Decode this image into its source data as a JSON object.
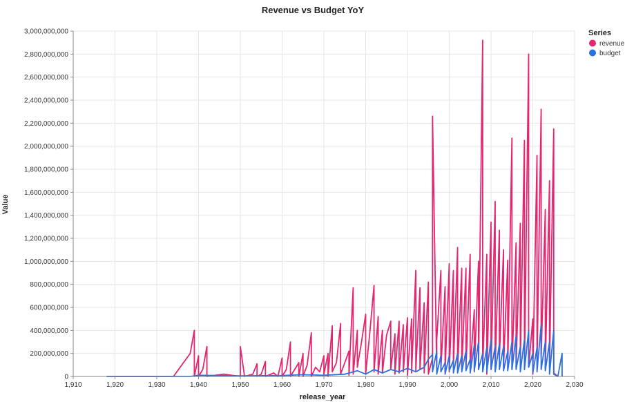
{
  "chart_data": {
    "type": "line",
    "title": "Revenue vs Budget YoY",
    "xlabel": "release_year",
    "ylabel": "Value",
    "xlim": [
      1910,
      2030
    ],
    "ylim": [
      0,
      3000000000
    ],
    "x_ticks": [
      "1,910",
      "1,920",
      "1,930",
      "1,940",
      "1,950",
      "1,960",
      "1,970",
      "1,980",
      "1,990",
      "2,000",
      "2,010",
      "2,020",
      "2,030"
    ],
    "y_ticks": [
      "0",
      "200,000,000",
      "400,000,000",
      "600,000,000",
      "800,000,000",
      "1,000,000,000",
      "1,200,000,000",
      "1,400,000,000",
      "1,600,000,000",
      "1,800,000,000",
      "2,000,000,000",
      "2,200,000,000",
      "2,400,000,000",
      "2,600,000,000",
      "2,800,000,000",
      "3,000,000,000"
    ],
    "grid": true,
    "legend": {
      "title": "Series",
      "position": "top-right"
    },
    "series": [
      {
        "name": "revenue",
        "color": "#e3266f",
        "points": [
          [
            1918,
            0
          ],
          [
            1934,
            0
          ],
          [
            1938,
            200000000
          ],
          [
            1939,
            400000000
          ],
          [
            1939,
            0
          ],
          [
            1940,
            180000000
          ],
          [
            1940,
            0
          ],
          [
            1941,
            60000000
          ],
          [
            1942,
            260000000
          ],
          [
            1942,
            0
          ],
          [
            1946,
            20000000
          ],
          [
            1950,
            0
          ],
          [
            1950,
            260000000
          ],
          [
            1951,
            0
          ],
          [
            1953,
            20000000
          ],
          [
            1954,
            110000000
          ],
          [
            1954,
            0
          ],
          [
            1955,
            20000000
          ],
          [
            1956,
            130000000
          ],
          [
            1956,
            0
          ],
          [
            1958,
            30000000
          ],
          [
            1959,
            0
          ],
          [
            1960,
            160000000
          ],
          [
            1960,
            0
          ],
          [
            1961,
            60000000
          ],
          [
            1962,
            300000000
          ],
          [
            1962,
            0
          ],
          [
            1963,
            60000000
          ],
          [
            1964,
            120000000
          ],
          [
            1964,
            0
          ],
          [
            1965,
            200000000
          ],
          [
            1965,
            0
          ],
          [
            1966,
            100000000
          ],
          [
            1967,
            380000000
          ],
          [
            1967,
            0
          ],
          [
            1968,
            80000000
          ],
          [
            1969,
            40000000
          ],
          [
            1970,
            180000000
          ],
          [
            1970,
            20000000
          ],
          [
            1971,
            200000000
          ],
          [
            1971,
            0
          ],
          [
            1972,
            440000000
          ],
          [
            1972,
            40000000
          ],
          [
            1973,
            120000000
          ],
          [
            1974,
            460000000
          ],
          [
            1974,
            20000000
          ],
          [
            1975,
            120000000
          ],
          [
            1976,
            220000000
          ],
          [
            1976,
            10000000
          ],
          [
            1977,
            770000000
          ],
          [
            1977,
            20000000
          ],
          [
            1978,
            400000000
          ],
          [
            1978,
            80000000
          ],
          [
            1979,
            300000000
          ],
          [
            1980,
            540000000
          ],
          [
            1980,
            20000000
          ],
          [
            1981,
            380000000
          ],
          [
            1982,
            790000000
          ],
          [
            1982,
            40000000
          ],
          [
            1983,
            520000000
          ],
          [
            1983,
            20000000
          ],
          [
            1984,
            400000000
          ],
          [
            1984,
            30000000
          ],
          [
            1985,
            360000000
          ],
          [
            1986,
            480000000
          ],
          [
            1986,
            60000000
          ],
          [
            1987,
            370000000
          ],
          [
            1987,
            20000000
          ],
          [
            1988,
            480000000
          ],
          [
            1988,
            30000000
          ],
          [
            1989,
            450000000
          ],
          [
            1989,
            40000000
          ],
          [
            1990,
            510000000
          ],
          [
            1990,
            10000000
          ],
          [
            1991,
            500000000
          ],
          [
            1991,
            30000000
          ],
          [
            1992,
            920000000
          ],
          [
            1992,
            50000000
          ],
          [
            1993,
            770000000
          ],
          [
            1993,
            60000000
          ],
          [
            1994,
            640000000
          ],
          [
            1994,
            30000000
          ],
          [
            1995,
            820000000
          ],
          [
            1995,
            20000000
          ],
          [
            1996,
            160000000
          ],
          [
            1996,
            2260000000
          ],
          [
            1997,
            50000000
          ],
          [
            1997,
            320000000
          ],
          [
            1998,
            920000000
          ],
          [
            1998,
            60000000
          ],
          [
            1999,
            780000000
          ],
          [
            1999,
            40000000
          ],
          [
            2000,
            980000000
          ],
          [
            2000,
            40000000
          ],
          [
            2001,
            920000000
          ],
          [
            2001,
            80000000
          ],
          [
            2002,
            1120000000
          ],
          [
            2002,
            50000000
          ],
          [
            2003,
            940000000
          ],
          [
            2003,
            60000000
          ],
          [
            2004,
            940000000
          ],
          [
            2004,
            60000000
          ],
          [
            2005,
            1060000000
          ],
          [
            2005,
            60000000
          ],
          [
            2006,
            580000000
          ],
          [
            2006,
            40000000
          ],
          [
            2007,
            1000000000
          ],
          [
            2007,
            60000000
          ],
          [
            2008,
            2920000000
          ],
          [
            2008,
            80000000
          ],
          [
            2009,
            1060000000
          ],
          [
            2009,
            20000000
          ],
          [
            2010,
            1340000000
          ],
          [
            2010,
            60000000
          ],
          [
            2011,
            1520000000
          ],
          [
            2011,
            80000000
          ],
          [
            2012,
            1270000000
          ],
          [
            2012,
            160000000
          ],
          [
            2013,
            1100000000
          ],
          [
            2013,
            80000000
          ],
          [
            2014,
            1010000000
          ],
          [
            2014,
            60000000
          ],
          [
            2015,
            2070000000
          ],
          [
            2015,
            60000000
          ],
          [
            2016,
            1160000000
          ],
          [
            2016,
            80000000
          ],
          [
            2017,
            1330000000
          ],
          [
            2017,
            120000000
          ],
          [
            2018,
            2050000000
          ],
          [
            2018,
            60000000
          ],
          [
            2019,
            2800000000
          ],
          [
            2019,
            80000000
          ],
          [
            2020,
            500000000
          ],
          [
            2020,
            20000000
          ],
          [
            2021,
            1920000000
          ],
          [
            2021,
            100000000
          ],
          [
            2022,
            2320000000
          ],
          [
            2022,
            160000000
          ],
          [
            2023,
            1450000000
          ],
          [
            2023,
            60000000
          ],
          [
            2024,
            1700000000
          ],
          [
            2024,
            80000000
          ],
          [
            2025,
            2150000000
          ],
          [
            2025,
            30000000
          ],
          [
            2026,
            0
          ]
        ]
      },
      {
        "name": "budget",
        "color": "#2b6fe0",
        "points": [
          [
            1918,
            0
          ],
          [
            1938,
            0
          ],
          [
            1940,
            10000000
          ],
          [
            1950,
            5000000
          ],
          [
            1960,
            8000000
          ],
          [
            1965,
            15000000
          ],
          [
            1970,
            10000000
          ],
          [
            1975,
            20000000
          ],
          [
            1978,
            50000000
          ],
          [
            1980,
            20000000
          ],
          [
            1982,
            60000000
          ],
          [
            1984,
            30000000
          ],
          [
            1986,
            60000000
          ],
          [
            1988,
            40000000
          ],
          [
            1990,
            70000000
          ],
          [
            1992,
            40000000
          ],
          [
            1994,
            80000000
          ],
          [
            1995,
            150000000
          ],
          [
            1996,
            190000000
          ],
          [
            1996,
            40000000
          ],
          [
            1997,
            220000000
          ],
          [
            1997,
            20000000
          ],
          [
            1998,
            180000000
          ],
          [
            1998,
            40000000
          ],
          [
            1999,
            120000000
          ],
          [
            1999,
            20000000
          ],
          [
            2000,
            180000000
          ],
          [
            2000,
            50000000
          ],
          [
            2001,
            140000000
          ],
          [
            2001,
            30000000
          ],
          [
            2002,
            200000000
          ],
          [
            2002,
            30000000
          ],
          [
            2003,
            180000000
          ],
          [
            2003,
            40000000
          ],
          [
            2004,
            220000000
          ],
          [
            2004,
            50000000
          ],
          [
            2005,
            150000000
          ],
          [
            2005,
            30000000
          ],
          [
            2006,
            270000000
          ],
          [
            2006,
            50000000
          ],
          [
            2007,
            300000000
          ],
          [
            2007,
            60000000
          ],
          [
            2008,
            200000000
          ],
          [
            2008,
            40000000
          ],
          [
            2009,
            250000000
          ],
          [
            2009,
            40000000
          ],
          [
            2010,
            320000000
          ],
          [
            2010,
            60000000
          ],
          [
            2011,
            260000000
          ],
          [
            2011,
            40000000
          ],
          [
            2012,
            280000000
          ],
          [
            2012,
            60000000
          ],
          [
            2013,
            260000000
          ],
          [
            2013,
            50000000
          ],
          [
            2014,
            220000000
          ],
          [
            2014,
            50000000
          ],
          [
            2015,
            300000000
          ],
          [
            2015,
            60000000
          ],
          [
            2016,
            350000000
          ],
          [
            2016,
            60000000
          ],
          [
            2017,
            260000000
          ],
          [
            2017,
            40000000
          ],
          [
            2018,
            320000000
          ],
          [
            2018,
            60000000
          ],
          [
            2019,
            400000000
          ],
          [
            2019,
            80000000
          ],
          [
            2020,
            200000000
          ],
          [
            2020,
            30000000
          ],
          [
            2021,
            250000000
          ],
          [
            2021,
            40000000
          ],
          [
            2022,
            450000000
          ],
          [
            2022,
            60000000
          ],
          [
            2023,
            300000000
          ],
          [
            2023,
            50000000
          ],
          [
            2024,
            300000000
          ],
          [
            2024,
            20000000
          ],
          [
            2025,
            400000000
          ],
          [
            2025,
            20000000
          ],
          [
            2026,
            0
          ],
          [
            2027,
            200000000
          ],
          [
            2027,
            0
          ]
        ]
      }
    ]
  }
}
